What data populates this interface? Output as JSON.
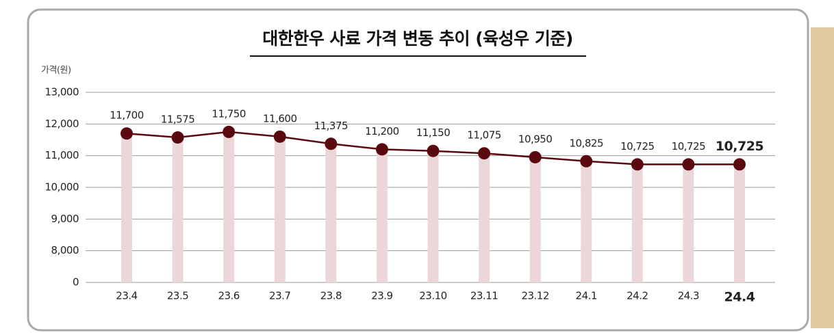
{
  "chart_data": {
    "type": "line",
    "title": "대한한우 사료 가격 변동 추이 (육성우 기준)",
    "y_label": "가격(원)",
    "categories": [
      "23.4",
      "23.5",
      "23.6",
      "23.7",
      "23.8",
      "23.9",
      "23.10",
      "23.11",
      "23.12",
      "24.1",
      "24.2",
      "24.3",
      "24.4"
    ],
    "values": [
      11700,
      11575,
      11750,
      11600,
      11375,
      11200,
      11150,
      11075,
      10950,
      10825,
      10725,
      10725,
      10725
    ],
    "value_labels": [
      "11,700",
      "11,575",
      "11,750",
      "11,600",
      "11,375",
      "11,200",
      "11,150",
      "11,075",
      "10,950",
      "10,825",
      "10,725",
      "10,725",
      "10,725"
    ],
    "color": "#5a0a0f",
    "bar_color": "#ebd7d7",
    "ylim": [
      0,
      13000
    ],
    "axis_break": [
      0,
      7000
    ],
    "yticks": [
      0,
      {
        "value": 8000,
        "label": "8,000"
      },
      {
        "value": 9000,
        "label": "9,000"
      },
      {
        "value": 10000,
        "label": "10,000"
      },
      {
        "value": 11000,
        "label": "11,000"
      },
      {
        "value": 12000,
        "label": "12,000"
      },
      {
        "value": 13000,
        "label": "13,000"
      }
    ],
    "grid": true
  }
}
